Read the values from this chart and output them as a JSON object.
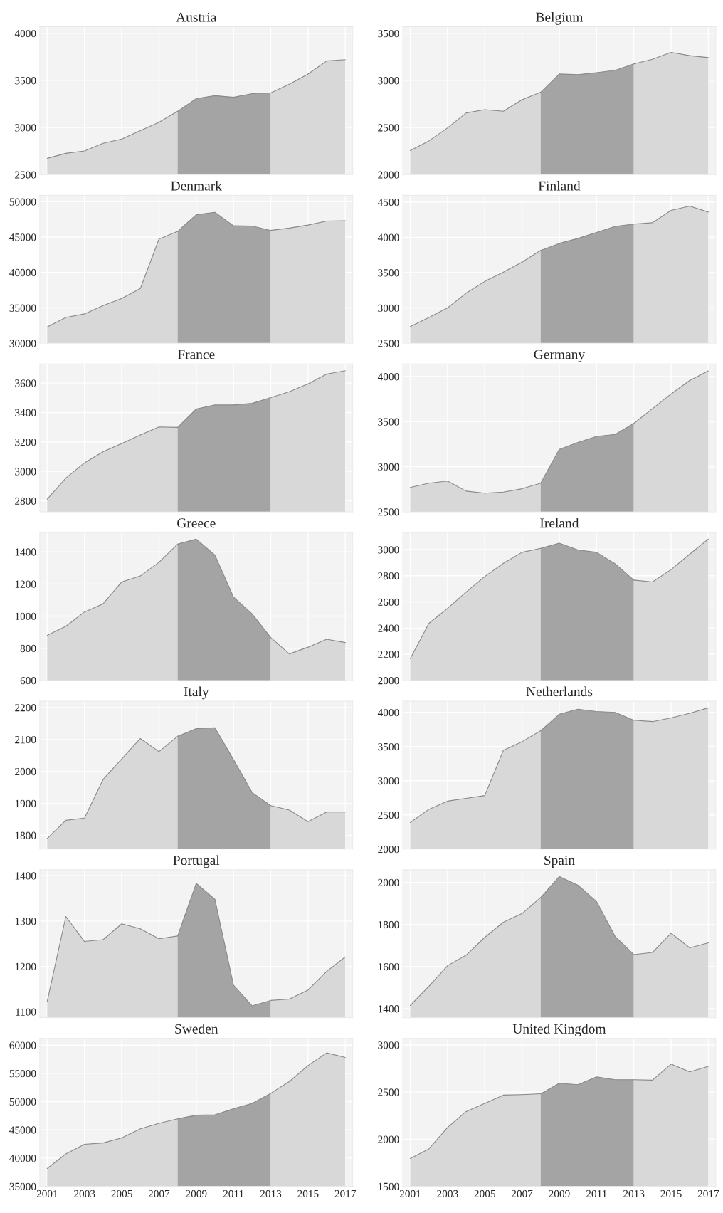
{
  "chart_data": [
    {
      "type": "area",
      "title": "Austria",
      "xlim": [
        2000.6,
        2017.4
      ],
      "xticks": [
        2001,
        2003,
        2005,
        2007,
        2009,
        2011,
        2013,
        2015,
        2017
      ],
      "ylim": [
        2500,
        4070
      ],
      "yticks": [
        2500,
        3000,
        3500,
        4000
      ],
      "grid": true,
      "tick_labels": "y",
      "series": [
        {
          "color": "#d8d8d8",
          "x": [
            2001,
            2002,
            2003,
            2004,
            2005,
            2006,
            2007,
            2008
          ],
          "values": [
            2673,
            2726,
            2751,
            2833,
            2878,
            2967,
            3055,
            3172
          ]
        },
        {
          "color": "#a4a4a4",
          "x": [
            2008,
            2009,
            2010,
            2011,
            2012,
            2013
          ],
          "values": [
            3172,
            3307,
            3338,
            3321,
            3360,
            3367
          ]
        },
        {
          "color": "#d8d8d8",
          "x": [
            2013,
            2014,
            2015,
            2016,
            2017
          ],
          "values": [
            3367,
            3459,
            3568,
            3706,
            3720
          ]
        }
      ]
    },
    {
      "type": "area",
      "title": "Belgium",
      "xlim": [
        2000.6,
        2017.4
      ],
      "xticks": [
        2001,
        2003,
        2005,
        2007,
        2009,
        2011,
        2013,
        2015,
        2017
      ],
      "ylim": [
        2000,
        3570
      ],
      "yticks": [
        2000,
        2500,
        3000,
        3500
      ],
      "grid": true,
      "tick_labels": "y",
      "series": [
        {
          "color": "#d8d8d8",
          "x": [
            2001,
            2002,
            2003,
            2004,
            2005,
            2006,
            2007,
            2008
          ],
          "values": [
            2255,
            2358,
            2496,
            2655,
            2690,
            2673,
            2796,
            2874
          ]
        },
        {
          "color": "#a4a4a4",
          "x": [
            2008,
            2009,
            2010,
            2011,
            2012,
            2013
          ],
          "values": [
            2874,
            3068,
            3061,
            3083,
            3107,
            3175
          ]
        },
        {
          "color": "#d8d8d8",
          "x": [
            2013,
            2014,
            2015,
            2016,
            2017
          ],
          "values": [
            3175,
            3224,
            3298,
            3263,
            3242
          ]
        }
      ]
    },
    {
      "type": "area",
      "title": "Denmark",
      "xlim": [
        2000.6,
        2017.4
      ],
      "xticks": [
        2001,
        2003,
        2005,
        2007,
        2009,
        2011,
        2013,
        2015,
        2017
      ],
      "ylim": [
        30000,
        50900
      ],
      "yticks": [
        30000,
        35000,
        40000,
        45000,
        50000
      ],
      "grid": true,
      "tick_labels": "y",
      "series": [
        {
          "color": "#d8d8d8",
          "x": [
            2001,
            2002,
            2003,
            2004,
            2005,
            2006,
            2007,
            2008
          ],
          "values": [
            32310,
            33630,
            34150,
            35330,
            36320,
            37740,
            44720,
            45800
          ]
        },
        {
          "color": "#a4a4a4",
          "x": [
            2008,
            2009,
            2010,
            2011,
            2012,
            2013
          ],
          "values": [
            45800,
            48160,
            48490,
            46600,
            46560,
            45940
          ]
        },
        {
          "color": "#d8d8d8",
          "x": [
            2013,
            2014,
            2015,
            2016,
            2017
          ],
          "values": [
            45940,
            46270,
            46700,
            47260,
            47310
          ]
        }
      ]
    },
    {
      "type": "area",
      "title": "Finland",
      "xlim": [
        2000.6,
        2017.4
      ],
      "xticks": [
        2001,
        2003,
        2005,
        2007,
        2009,
        2011,
        2013,
        2015,
        2017
      ],
      "ylim": [
        2500,
        4595
      ],
      "yticks": [
        2500,
        3000,
        3500,
        4000,
        4500
      ],
      "grid": true,
      "tick_labels": "y",
      "series": [
        {
          "color": "#d8d8d8",
          "x": [
            2001,
            2002,
            2003,
            2004,
            2005,
            2006,
            2007,
            2008
          ],
          "values": [
            2736,
            2864,
            3001,
            3209,
            3375,
            3507,
            3649,
            3814
          ]
        },
        {
          "color": "#a4a4a4",
          "x": [
            2008,
            2009,
            2010,
            2011,
            2012,
            2013
          ],
          "values": [
            3814,
            3914,
            3985,
            4070,
            4155,
            4188
          ]
        },
        {
          "color": "#d8d8d8",
          "x": [
            2013,
            2014,
            2015,
            2016,
            2017
          ],
          "values": [
            4188,
            4207,
            4382,
            4443,
            4358
          ]
        }
      ]
    },
    {
      "type": "area",
      "title": "France",
      "xlim": [
        2000.6,
        2017.4
      ],
      "xticks": [
        2001,
        2003,
        2005,
        2007,
        2009,
        2011,
        2013,
        2015,
        2017
      ],
      "ylim": [
        2725,
        3730
      ],
      "yticks": [
        2800,
        3000,
        3200,
        3400,
        3600
      ],
      "grid": true,
      "tick_labels": "y",
      "series": [
        {
          "color": "#d8d8d8",
          "x": [
            2001,
            2002,
            2003,
            2004,
            2005,
            2006,
            2007,
            2008
          ],
          "values": [
            2811,
            2954,
            3058,
            3134,
            3189,
            3247,
            3302,
            3299
          ]
        },
        {
          "color": "#a4a4a4",
          "x": [
            2008,
            2009,
            2010,
            2011,
            2012,
            2013
          ],
          "values": [
            3299,
            3424,
            3451,
            3451,
            3462,
            3501
          ]
        },
        {
          "color": "#d8d8d8",
          "x": [
            2013,
            2014,
            2015,
            2016,
            2017
          ],
          "values": [
            3501,
            3541,
            3595,
            3661,
            3684
          ]
        }
      ]
    },
    {
      "type": "area",
      "title": "Germany",
      "xlim": [
        2000.6,
        2017.4
      ],
      "xticks": [
        2001,
        2003,
        2005,
        2007,
        2009,
        2011,
        2013,
        2015,
        2017
      ],
      "ylim": [
        2500,
        4140
      ],
      "yticks": [
        2500,
        3000,
        3500,
        4000
      ],
      "grid": true,
      "tick_labels": "y",
      "series": [
        {
          "color": "#d8d8d8",
          "x": [
            2001,
            2002,
            2003,
            2004,
            2005,
            2006,
            2007,
            2008
          ],
          "values": [
            2770,
            2818,
            2841,
            2730,
            2707,
            2719,
            2756,
            2818
          ]
        },
        {
          "color": "#a4a4a4",
          "x": [
            2008,
            2009,
            2010,
            2011,
            2012,
            2013
          ],
          "values": [
            2818,
            3193,
            3270,
            3337,
            3359,
            3481
          ]
        },
        {
          "color": "#d8d8d8",
          "x": [
            2013,
            2014,
            2015,
            2016,
            2017
          ],
          "values": [
            3481,
            3644,
            3807,
            3956,
            4063
          ]
        }
      ]
    },
    {
      "type": "area",
      "title": "Greece",
      "xlim": [
        2000.6,
        2017.4
      ],
      "xticks": [
        2001,
        2003,
        2005,
        2007,
        2009,
        2011,
        2013,
        2015,
        2017
      ],
      "ylim": [
        600,
        1520
      ],
      "yticks": [
        600,
        800,
        1000,
        1200,
        1400
      ],
      "grid": true,
      "tick_labels": "y",
      "series": [
        {
          "color": "#d8d8d8",
          "x": [
            2001,
            2002,
            2003,
            2004,
            2005,
            2006,
            2007,
            2008
          ],
          "values": [
            881,
            937,
            1026,
            1077,
            1213,
            1250,
            1335,
            1448
          ]
        },
        {
          "color": "#a4a4a4",
          "x": [
            2008,
            2009,
            2010,
            2011,
            2012,
            2013
          ],
          "values": [
            1448,
            1479,
            1380,
            1119,
            1014,
            867
          ]
        },
        {
          "color": "#d8d8d8",
          "x": [
            2013,
            2014,
            2015,
            2016,
            2017
          ],
          "values": [
            867,
            765,
            807,
            856,
            836
          ]
        }
      ]
    },
    {
      "type": "area",
      "title": "Ireland",
      "xlim": [
        2000.6,
        2017.4
      ],
      "xticks": [
        2001,
        2003,
        2005,
        2007,
        2009,
        2011,
        2013,
        2015,
        2017
      ],
      "ylim": [
        2000,
        3130
      ],
      "yticks": [
        2000,
        2200,
        2400,
        2600,
        2800,
        3000
      ],
      "grid": true,
      "tick_labels": "y",
      "series": [
        {
          "color": "#d8d8d8",
          "x": [
            2001,
            2002,
            2003,
            2004,
            2005,
            2006,
            2007,
            2008
          ],
          "values": [
            2167,
            2436,
            2551,
            2676,
            2794,
            2895,
            2979,
            3010
          ]
        },
        {
          "color": "#a4a4a4",
          "x": [
            2008,
            2009,
            2010,
            2011,
            2012,
            2013
          ],
          "values": [
            3010,
            3049,
            2997,
            2979,
            2892,
            2767
          ]
        },
        {
          "color": "#d8d8d8",
          "x": [
            2013,
            2014,
            2015,
            2016,
            2017
          ],
          "values": [
            2767,
            2753,
            2847,
            2965,
            3080
          ]
        }
      ]
    },
    {
      "type": "area",
      "title": "Italy",
      "xlim": [
        2000.6,
        2017.4
      ],
      "xticks": [
        2001,
        2003,
        2005,
        2007,
        2009,
        2011,
        2013,
        2015,
        2017
      ],
      "ylim": [
        1757,
        2220
      ],
      "yticks": [
        1800,
        1900,
        2000,
        2100,
        2200
      ],
      "grid": true,
      "tick_labels": "y",
      "series": [
        {
          "color": "#d8d8d8",
          "x": [
            2001,
            2002,
            2003,
            2004,
            2005,
            2006,
            2007,
            2008
          ],
          "values": [
            1790,
            1847,
            1854,
            1975,
            2039,
            2103,
            2062,
            2110
          ]
        },
        {
          "color": "#a4a4a4",
          "x": [
            2008,
            2009,
            2010,
            2011,
            2012,
            2013
          ],
          "values": [
            2110,
            2134,
            2137,
            2037,
            1934,
            1893
          ]
        },
        {
          "color": "#d8d8d8",
          "x": [
            2013,
            2014,
            2015,
            2016,
            2017
          ],
          "values": [
            1893,
            1879,
            1843,
            1873,
            1873
          ]
        }
      ]
    },
    {
      "type": "area",
      "title": "Netherlands",
      "xlim": [
        2000.6,
        2017.4
      ],
      "xticks": [
        2001,
        2003,
        2005,
        2007,
        2009,
        2011,
        2013,
        2015,
        2017
      ],
      "ylim": [
        2000,
        4165
      ],
      "yticks": [
        2000,
        2500,
        3000,
        3500,
        4000
      ],
      "grid": true,
      "tick_labels": "y",
      "series": [
        {
          "color": "#d8d8d8",
          "x": [
            2001,
            2002,
            2003,
            2004,
            2005,
            2006,
            2007,
            2008
          ],
          "values": [
            2388,
            2582,
            2702,
            2742,
            2783,
            3445,
            3572,
            3732
          ]
        },
        {
          "color": "#a4a4a4",
          "x": [
            2008,
            2009,
            2010,
            2011,
            2012,
            2013
          ],
          "values": [
            3732,
            3973,
            4047,
            4013,
            4000,
            3886
          ]
        },
        {
          "color": "#d8d8d8",
          "x": [
            2013,
            2014,
            2015,
            2016,
            2017
          ],
          "values": [
            3886,
            3866,
            3920,
            3987,
            4067
          ]
        }
      ]
    },
    {
      "type": "area",
      "title": "Portugal",
      "xlim": [
        2000.6,
        2017.4
      ],
      "xticks": [
        2001,
        2003,
        2005,
        2007,
        2009,
        2011,
        2013,
        2015,
        2017
      ],
      "ylim": [
        1087,
        1413
      ],
      "yticks": [
        1100,
        1200,
        1300,
        1400
      ],
      "grid": true,
      "tick_labels": "y",
      "series": [
        {
          "color": "#d8d8d8",
          "x": [
            2001,
            2002,
            2003,
            2004,
            2005,
            2006,
            2007,
            2008
          ],
          "values": [
            1123,
            1310,
            1255,
            1259,
            1294,
            1283,
            1261,
            1267
          ]
        },
        {
          "color": "#a4a4a4",
          "x": [
            2008,
            2009,
            2010,
            2011,
            2012,
            2013
          ],
          "values": [
            1267,
            1383,
            1348,
            1159,
            1113,
            1125
          ]
        },
        {
          "color": "#d8d8d8",
          "x": [
            2013,
            2014,
            2015,
            2016,
            2017
          ],
          "values": [
            1125,
            1128,
            1148,
            1189,
            1221
          ]
        }
      ]
    },
    {
      "type": "area",
      "title": "Spain",
      "xlim": [
        2000.6,
        2017.4
      ],
      "xticks": [
        2001,
        2003,
        2005,
        2007,
        2009,
        2011,
        2013,
        2015,
        2017
      ],
      "ylim": [
        1357,
        2060
      ],
      "yticks": [
        1400,
        1600,
        1800,
        2000
      ],
      "grid": true,
      "tick_labels": "y",
      "series": [
        {
          "color": "#d8d8d8",
          "x": [
            2001,
            2002,
            2003,
            2004,
            2005,
            2006,
            2007,
            2008
          ],
          "values": [
            1415,
            1506,
            1604,
            1654,
            1739,
            1811,
            1852,
            1928
          ]
        },
        {
          "color": "#a4a4a4",
          "x": [
            2008,
            2009,
            2010,
            2011,
            2012,
            2013
          ],
          "values": [
            1928,
            2028,
            1987,
            1909,
            1743,
            1657
          ]
        },
        {
          "color": "#d8d8d8",
          "x": [
            2013,
            2014,
            2015,
            2016,
            2017
          ],
          "values": [
            1657,
            1667,
            1759,
            1689,
            1713
          ]
        }
      ]
    },
    {
      "type": "area",
      "title": "Sweden",
      "xlim": [
        2000.6,
        2017.4
      ],
      "xticks": [
        2001,
        2003,
        2005,
        2007,
        2009,
        2011,
        2013,
        2015,
        2017
      ],
      "ylim": [
        35000,
        61200
      ],
      "yticks": [
        35000,
        40000,
        45000,
        50000,
        55000,
        60000
      ],
      "grid": true,
      "series": [
        {
          "color": "#d8d8d8",
          "x": [
            2001,
            2002,
            2003,
            2004,
            2005,
            2006,
            2007,
            2008
          ],
          "values": [
            38160,
            40740,
            42440,
            42680,
            43570,
            45180,
            46150,
            46950
          ]
        },
        {
          "color": "#a4a4a4",
          "x": [
            2008,
            2009,
            2010,
            2011,
            2012,
            2013
          ],
          "values": [
            46950,
            47600,
            47680,
            48730,
            49700,
            51470
          ]
        },
        {
          "color": "#d8d8d8",
          "x": [
            2013,
            2014,
            2015,
            2016,
            2017
          ],
          "values": [
            51470,
            53570,
            56390,
            58630,
            57820
          ]
        }
      ]
    },
    {
      "type": "area",
      "title": "United Kingdom",
      "xlim": [
        2000.6,
        2017.4
      ],
      "xticks": [
        2001,
        2003,
        2005,
        2007,
        2009,
        2011,
        2013,
        2015,
        2017
      ],
      "ylim": [
        1500,
        3070
      ],
      "yticks": [
        1500,
        2000,
        2500,
        3000
      ],
      "grid": true,
      "series": [
        {
          "color": "#d8d8d8",
          "x": [
            2001,
            2002,
            2003,
            2004,
            2005,
            2006,
            2007,
            2008
          ],
          "values": [
            1795,
            1897,
            2124,
            2294,
            2381,
            2468,
            2473,
            2482
          ]
        },
        {
          "color": "#a4a4a4",
          "x": [
            2008,
            2009,
            2010,
            2011,
            2012,
            2013
          ],
          "values": [
            2482,
            2594,
            2579,
            2661,
            2632,
            2632
          ]
        },
        {
          "color": "#d8d8d8",
          "x": [
            2013,
            2014,
            2015,
            2016,
            2017
          ],
          "values": [
            2632,
            2627,
            2797,
            2715,
            2773
          ]
        }
      ]
    }
  ]
}
